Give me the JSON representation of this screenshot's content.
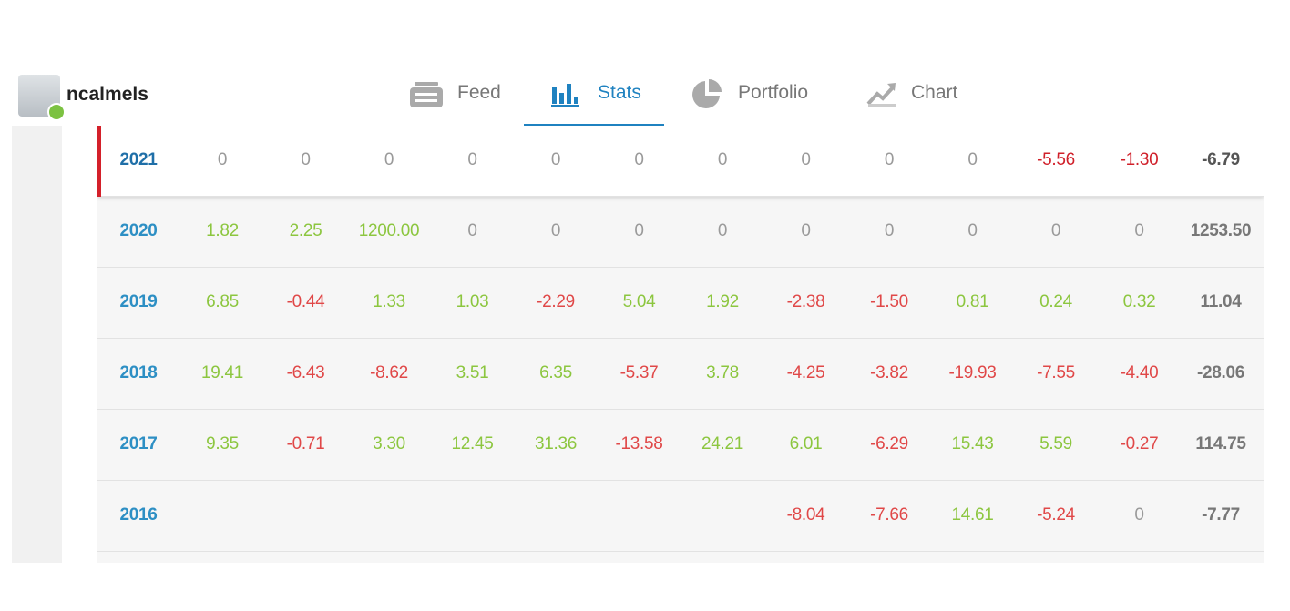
{
  "header": {
    "username": "ncalmels",
    "tabs": [
      "Feed",
      "Stats",
      "Portfolio",
      "Chart"
    ]
  },
  "table": {
    "rows": [
      {
        "year": "2021",
        "months": [
          "0",
          "0",
          "0",
          "0",
          "0",
          "0",
          "0",
          "0",
          "0",
          "0",
          "-5.56",
          "-1.30"
        ],
        "total": "-6.79"
      },
      {
        "year": "2020",
        "months": [
          "1.82",
          "2.25",
          "1200.00",
          "0",
          "0",
          "0",
          "0",
          "0",
          "0",
          "0",
          "0",
          "0"
        ],
        "total": "1253.50"
      },
      {
        "year": "2019",
        "months": [
          "6.85",
          "-0.44",
          "1.33",
          "1.03",
          "-2.29",
          "5.04",
          "1.92",
          "-2.38",
          "-1.50",
          "0.81",
          "0.24",
          "0.32"
        ],
        "total": "11.04"
      },
      {
        "year": "2018",
        "months": [
          "19.41",
          "-6.43",
          "-8.62",
          "3.51",
          "6.35",
          "-5.37",
          "3.78",
          "-4.25",
          "-3.82",
          "-19.93",
          "-7.55",
          "-4.40"
        ],
        "total": "-28.06"
      },
      {
        "year": "2017",
        "months": [
          "9.35",
          "-0.71",
          "3.30",
          "12.45",
          "31.36",
          "-13.58",
          "24.21",
          "6.01",
          "-6.29",
          "15.43",
          "5.59",
          "-0.27"
        ],
        "total": "114.75"
      },
      {
        "year": "2016",
        "months": [
          null,
          null,
          null,
          null,
          null,
          null,
          null,
          "-8.04",
          "-7.66",
          "14.61",
          "-5.24",
          "0"
        ],
        "total": "-7.77"
      }
    ]
  }
}
